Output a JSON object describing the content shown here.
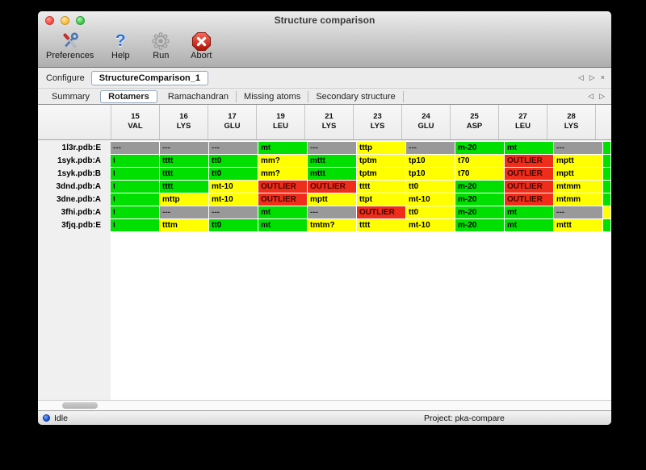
{
  "window": {
    "title": "Structure comparison"
  },
  "toolbar": {
    "items": [
      {
        "label": "Preferences",
        "icon": "tools-icon"
      },
      {
        "label": "Help",
        "icon": "help-icon"
      },
      {
        "label": "Run",
        "icon": "gear-icon"
      },
      {
        "label": "Abort",
        "icon": "abort-icon"
      }
    ]
  },
  "configure": {
    "label": "Configure",
    "value": "StructureComparison_1",
    "nav_prev": "◁",
    "nav_next": "▷",
    "nav_close": "×"
  },
  "tabs": {
    "items": [
      "Summary",
      "Rotamers",
      "Ramachandran",
      "Missing atoms",
      "Secondary structure"
    ],
    "selected": "Rotamers",
    "nav_prev": "◁",
    "nav_next": "▷"
  },
  "table": {
    "columns": [
      {
        "num": "15",
        "res": "VAL"
      },
      {
        "num": "16",
        "res": "LYS"
      },
      {
        "num": "17",
        "res": "GLU"
      },
      {
        "num": "19",
        "res": "LEU"
      },
      {
        "num": "21",
        "res": "LYS"
      },
      {
        "num": "23",
        "res": "LYS"
      },
      {
        "num": "24",
        "res": "GLU"
      },
      {
        "num": "25",
        "res": "ASP"
      },
      {
        "num": "27",
        "res": "LEU"
      },
      {
        "num": "28",
        "res": "LYS"
      }
    ],
    "status_colors": {
      "favored": "#00e000",
      "allowed": "#ffff00",
      "outlier": "#ee2e1b",
      "missing": "#999999"
    },
    "rows": [
      {
        "label": "1l3r.pdb:E",
        "cells": [
          [
            "---",
            "missing"
          ],
          [
            "---",
            "missing"
          ],
          [
            "---",
            "missing"
          ],
          [
            "mt",
            "favored"
          ],
          [
            "---",
            "missing"
          ],
          [
            "tttp",
            "allowed"
          ],
          [
            "---",
            "missing"
          ],
          [
            "m-20",
            "favored"
          ],
          [
            "mt",
            "favored"
          ],
          [
            "---",
            "missing"
          ]
        ],
        "overflow": "favored"
      },
      {
        "label": "1syk.pdb:A",
        "cells": [
          [
            "t",
            "favored",
            "clip"
          ],
          [
            "tttt",
            "favored"
          ],
          [
            "tt0",
            "favored"
          ],
          [
            "mm?",
            "allowed"
          ],
          [
            "mttt",
            "favored"
          ],
          [
            "tptm",
            "allowed"
          ],
          [
            "tp10",
            "allowed"
          ],
          [
            "t70",
            "allowed"
          ],
          [
            "OUTLIER",
            "outlier"
          ],
          [
            "mptt",
            "allowed"
          ]
        ],
        "overflow": "favored"
      },
      {
        "label": "1syk.pdb:B",
        "cells": [
          [
            "t",
            "favored",
            "clip"
          ],
          [
            "tttt",
            "favored"
          ],
          [
            "tt0",
            "favored"
          ],
          [
            "mm?",
            "allowed"
          ],
          [
            "mttt",
            "favored"
          ],
          [
            "tptm",
            "allowed"
          ],
          [
            "tp10",
            "allowed"
          ],
          [
            "t70",
            "allowed"
          ],
          [
            "OUTLIER",
            "outlier"
          ],
          [
            "mptt",
            "allowed"
          ]
        ],
        "overflow": "favored"
      },
      {
        "label": "3dnd.pdb:A",
        "cells": [
          [
            "t",
            "favored",
            "clip"
          ],
          [
            "tttt",
            "favored"
          ],
          [
            "mt-10",
            "allowed"
          ],
          [
            "OUTLIER",
            "outlier"
          ],
          [
            "OUTLIER",
            "outlier"
          ],
          [
            "tttt",
            "allowed"
          ],
          [
            "tt0",
            "allowed"
          ],
          [
            "m-20",
            "favored"
          ],
          [
            "OUTLIER",
            "outlier"
          ],
          [
            "mtmm",
            "allowed"
          ]
        ],
        "overflow": "favored"
      },
      {
        "label": "3dne.pdb:A",
        "cells": [
          [
            "t",
            "favored",
            "clip"
          ],
          [
            "mttp",
            "allowed"
          ],
          [
            "mt-10",
            "allowed"
          ],
          [
            "OUTLIER",
            "outlier"
          ],
          [
            "mptt",
            "allowed"
          ],
          [
            "ttpt",
            "allowed"
          ],
          [
            "mt-10",
            "allowed"
          ],
          [
            "m-20",
            "favored"
          ],
          [
            "OUTLIER",
            "outlier"
          ],
          [
            "mtmm",
            "allowed"
          ]
        ],
        "overflow": "favored"
      },
      {
        "label": "3fhi.pdb:A",
        "cells": [
          [
            "t",
            "favored",
            "clip"
          ],
          [
            "---",
            "missing"
          ],
          [
            "---",
            "missing"
          ],
          [
            "mt",
            "favored"
          ],
          [
            "---",
            "missing"
          ],
          [
            "OUTLIER",
            "outlier"
          ],
          [
            "tt0",
            "allowed"
          ],
          [
            "m-20",
            "favored"
          ],
          [
            "mt",
            "favored"
          ],
          [
            "---",
            "missing"
          ]
        ],
        "overflow": "allowed"
      },
      {
        "label": "3fjq.pdb:E",
        "cells": [
          [
            "t",
            "favored",
            "clip"
          ],
          [
            "tttm",
            "allowed"
          ],
          [
            "tt0",
            "favored"
          ],
          [
            "mt",
            "favored"
          ],
          [
            "tmtm?",
            "allowed"
          ],
          [
            "tttt",
            "allowed"
          ],
          [
            "mt-10",
            "allowed"
          ],
          [
            "m-20",
            "favored"
          ],
          [
            "mt",
            "favored"
          ],
          [
            "mttt",
            "allowed"
          ]
        ],
        "overflow": "favored"
      }
    ]
  },
  "statusbar": {
    "status": "Idle",
    "project": "Project: pka-compare"
  }
}
